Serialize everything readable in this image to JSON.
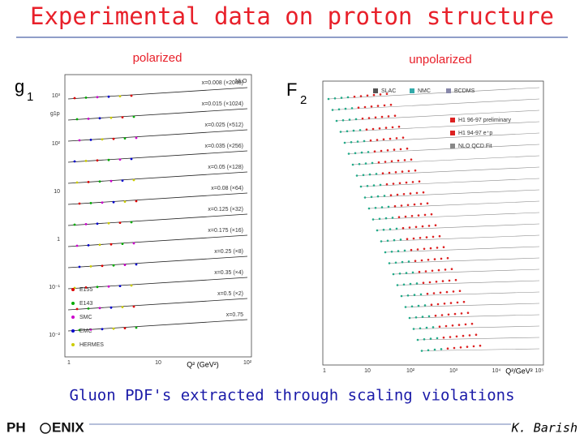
{
  "header": {
    "title": "Experimental data on proton structure"
  },
  "left_panel": {
    "caption": "polarized",
    "symbol": "g",
    "symbol_sub": "1",
    "y_label": "g1p",
    "fit_label": "NLO",
    "curve_labels": [
      "x=0.008 (×2048)",
      "x=0.015 (×1024)",
      "x=0.025 (×512)",
      "x=0.035 (×256)",
      "x=0.05 (×128)",
      "x=0.08 (×64)",
      "x=0.125 (×32)",
      "x=0.175 (×16)",
      "x=0.25 (×8)",
      "x=0.35 (×4)",
      "x=0.5 (×2)",
      "x=0.75"
    ],
    "legend": [
      "E155",
      "E143",
      "SMC",
      "EMC",
      "HERMES"
    ],
    "y_tick_labels": [
      "10³",
      "10²",
      "10",
      "1",
      "10⁻¹",
      "10⁻²"
    ],
    "x_tick_labels": [
      "1",
      "10",
      "10²"
    ],
    "x_label": "Q² (GeV²)"
  },
  "right_panel": {
    "caption": "unpolarized",
    "symbol": "F",
    "symbol_sub": "2",
    "legend": [
      "SLAC",
      "NMC",
      "BCDMS",
      "H1 96-97 preliminary",
      "H1 94-97 e⁺p",
      "NLO QCD Fit"
    ],
    "x_tick_labels": [
      "1",
      "10",
      "10²",
      "10³",
      "10⁴",
      "10⁵"
    ],
    "x_label": "Q²/GeV²"
  },
  "footer": {
    "summary": "Gluon PDF's extracted through scaling violations",
    "logo_left": "PH",
    "logo_right": "ENIX",
    "author": "K. Barish"
  }
}
